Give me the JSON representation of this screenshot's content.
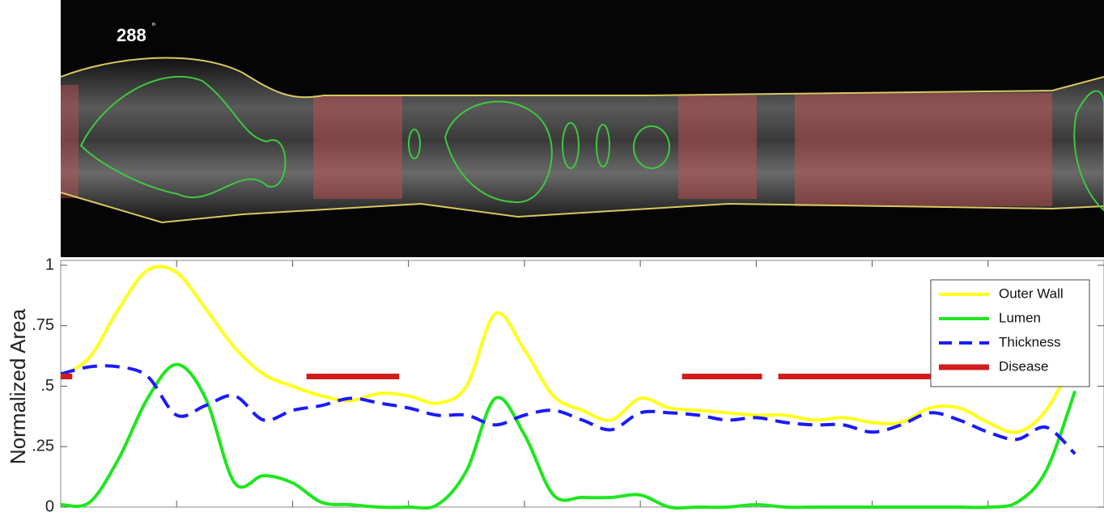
{
  "image": {
    "angle": "288",
    "unit": "°"
  },
  "chart_data": {
    "type": "line",
    "ylabel": "Normalized Area",
    "xlim": [
      0,
      9
    ],
    "xticks": [
      1,
      2,
      3,
      4,
      5,
      6,
      7,
      8
    ],
    "ylim": [
      0,
      1.02
    ],
    "yticks": [
      0,
      {
        "value": 0.25,
        "label": ".25"
      },
      {
        "value": 0.5,
        "label": ".5"
      },
      {
        "value": 0.75,
        "label": ".75"
      },
      1
    ],
    "legend": "upper right",
    "x": [
      0,
      0.25,
      0.5,
      0.75,
      1,
      1.25,
      1.5,
      1.75,
      2,
      2.25,
      2.5,
      2.75,
      3,
      3.25,
      3.5,
      3.75,
      4,
      4.25,
      4.5,
      4.75,
      5,
      5.25,
      5.5,
      5.75,
      6,
      6.25,
      6.5,
      6.75,
      7,
      7.25,
      7.5,
      7.75,
      8,
      8.25,
      8.5,
      8.75
    ],
    "series": [
      {
        "name": "Outer Wall",
        "color": "#ffff1a",
        "dash": false,
        "values": [
          0.54,
          0.62,
          0.82,
          0.98,
          0.97,
          0.82,
          0.66,
          0.55,
          0.5,
          0.46,
          0.44,
          0.47,
          0.46,
          0.43,
          0.5,
          0.8,
          0.65,
          0.46,
          0.4,
          0.36,
          0.45,
          0.41,
          0.4,
          0.39,
          0.38,
          0.38,
          0.36,
          0.37,
          0.35,
          0.35,
          0.41,
          0.41,
          0.35,
          0.31,
          0.4,
          0.62
        ]
      },
      {
        "name": "Lumen",
        "color": "#1ee61e",
        "dash": false,
        "values": [
          0.01,
          0.02,
          0.2,
          0.45,
          0.59,
          0.45,
          0.1,
          0.13,
          0.1,
          0.02,
          0.01,
          0,
          0,
          0.01,
          0.15,
          0.45,
          0.3,
          0.05,
          0.04,
          0.04,
          0.05,
          0,
          0,
          0,
          0.01,
          0,
          0,
          0,
          0,
          0,
          0,
          0,
          0,
          0.02,
          0.15,
          0.48
        ]
      },
      {
        "name": "Thickness",
        "color": "#1a1aff",
        "dash": true,
        "values": [
          0.55,
          0.58,
          0.58,
          0.54,
          0.38,
          0.42,
          0.46,
          0.36,
          0.4,
          0.42,
          0.45,
          0.43,
          0.41,
          0.38,
          0.38,
          0.34,
          0.38,
          0.4,
          0.36,
          0.32,
          0.39,
          0.39,
          0.38,
          0.36,
          0.37,
          0.35,
          0.34,
          0.34,
          0.31,
          0.34,
          0.39,
          0.36,
          0.31,
          0.28,
          0.33,
          0.22
        ]
      },
      {
        "name": "Disease",
        "color": "#d01c1c",
        "dash": false,
        "width": 7,
        "x": [
          0,
          0.1,
          0.11,
          2.12,
          2.92,
          2.93,
          5.36,
          6.05,
          6.06,
          6.19,
          8.83
        ],
        "values": [
          0.54,
          0.54,
          null,
          0.54,
          0.54,
          null,
          0.54,
          0.54,
          null,
          0.54,
          0.54
        ]
      }
    ]
  }
}
